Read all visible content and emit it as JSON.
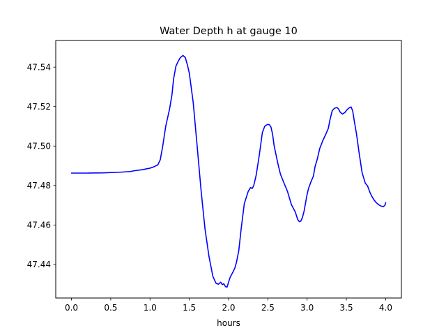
{
  "chart_data": {
    "type": "line",
    "title": "Water Depth h at gauge 10",
    "xlabel": "hours",
    "ylabel": "",
    "xlim": [
      -0.2,
      4.2
    ],
    "ylim": [
      47.423,
      47.5535
    ],
    "xticks": [
      0.0,
      0.5,
      1.0,
      1.5,
      2.0,
      2.5,
      3.0,
      3.5,
      4.0
    ],
    "xtick_labels": [
      "0.0",
      "0.5",
      "1.0",
      "1.5",
      "2.0",
      "2.5",
      "3.0",
      "3.5",
      "4.0"
    ],
    "yticks": [
      47.44,
      47.46,
      47.48,
      47.5,
      47.52,
      47.54
    ],
    "ytick_labels": [
      "47.44",
      "47.46",
      "47.48",
      "47.50",
      "47.52",
      "47.54"
    ],
    "grid": false,
    "line_color": "#0000ff",
    "series": [
      {
        "x": [
          0.0,
          0.2,
          0.4,
          0.6,
          0.75,
          0.8,
          0.9,
          1.0,
          1.05,
          1.1,
          1.13,
          1.16,
          1.2,
          1.25,
          1.28,
          1.3,
          1.33,
          1.36,
          1.38,
          1.4,
          1.42,
          1.45,
          1.48,
          1.5,
          1.55,
          1.6,
          1.65,
          1.7,
          1.75,
          1.8,
          1.84,
          1.87,
          1.9,
          1.92,
          1.94,
          1.96,
          1.98,
          2.0,
          2.02,
          2.04,
          2.06,
          2.08,
          2.1,
          2.13,
          2.16,
          2.2,
          2.25,
          2.28,
          2.3,
          2.32,
          2.35,
          2.38,
          2.4,
          2.43,
          2.46,
          2.48,
          2.5,
          2.52,
          2.54,
          2.56,
          2.58,
          2.6,
          2.63,
          2.66,
          2.7,
          2.75,
          2.8,
          2.85,
          2.88,
          2.9,
          2.92,
          2.94,
          2.96,
          2.98,
          3.0,
          3.02,
          3.05,
          3.08,
          3.1,
          3.13,
          3.16,
          3.2,
          3.24,
          3.27,
          3.29,
          3.32,
          3.35,
          3.38,
          3.4,
          3.42,
          3.45,
          3.48,
          3.51,
          3.54,
          3.56,
          3.58,
          3.6,
          3.63,
          3.66,
          3.7,
          3.74,
          3.77,
          3.8,
          3.82,
          3.85,
          3.88,
          3.91,
          3.94,
          3.97,
          3.99,
          4.0
        ],
        "y": [
          47.4863,
          47.4863,
          47.4864,
          47.4867,
          47.4871,
          47.4875,
          47.488,
          47.4888,
          47.4895,
          47.4905,
          47.493,
          47.4995,
          47.51,
          47.519,
          47.5262,
          47.534,
          47.5405,
          47.543,
          47.5445,
          47.5453,
          47.5459,
          47.5448,
          47.5405,
          47.537,
          47.522,
          47.5,
          47.4775,
          47.458,
          47.4442,
          47.434,
          47.4305,
          47.43,
          47.431,
          47.4298,
          47.4302,
          47.4288,
          47.4285,
          47.431,
          47.4335,
          47.435,
          47.4365,
          47.4382,
          47.441,
          47.447,
          47.458,
          47.4708,
          47.477,
          47.479,
          47.4785,
          47.4799,
          47.485,
          47.4925,
          47.498,
          47.5068,
          47.51,
          47.5106,
          47.511,
          47.5108,
          47.5096,
          47.506,
          47.5002,
          47.4963,
          47.4907,
          47.4858,
          47.4818,
          47.477,
          47.4703,
          47.4665,
          47.4628,
          47.4617,
          47.462,
          47.4638,
          47.4668,
          47.4712,
          47.4756,
          47.4788,
          47.482,
          47.4848,
          47.4895,
          47.4935,
          47.4987,
          47.5028,
          47.5062,
          47.509,
          47.5132,
          47.518,
          47.5192,
          47.5195,
          47.5188,
          47.5172,
          47.5162,
          47.517,
          47.5185,
          47.5195,
          47.5198,
          47.5178,
          47.5128,
          47.5058,
          47.497,
          47.4865,
          47.4812,
          47.4797,
          47.4765,
          47.4748,
          47.4728,
          47.4713,
          47.4703,
          47.4696,
          47.4693,
          47.47,
          47.4713
        ]
      }
    ]
  }
}
